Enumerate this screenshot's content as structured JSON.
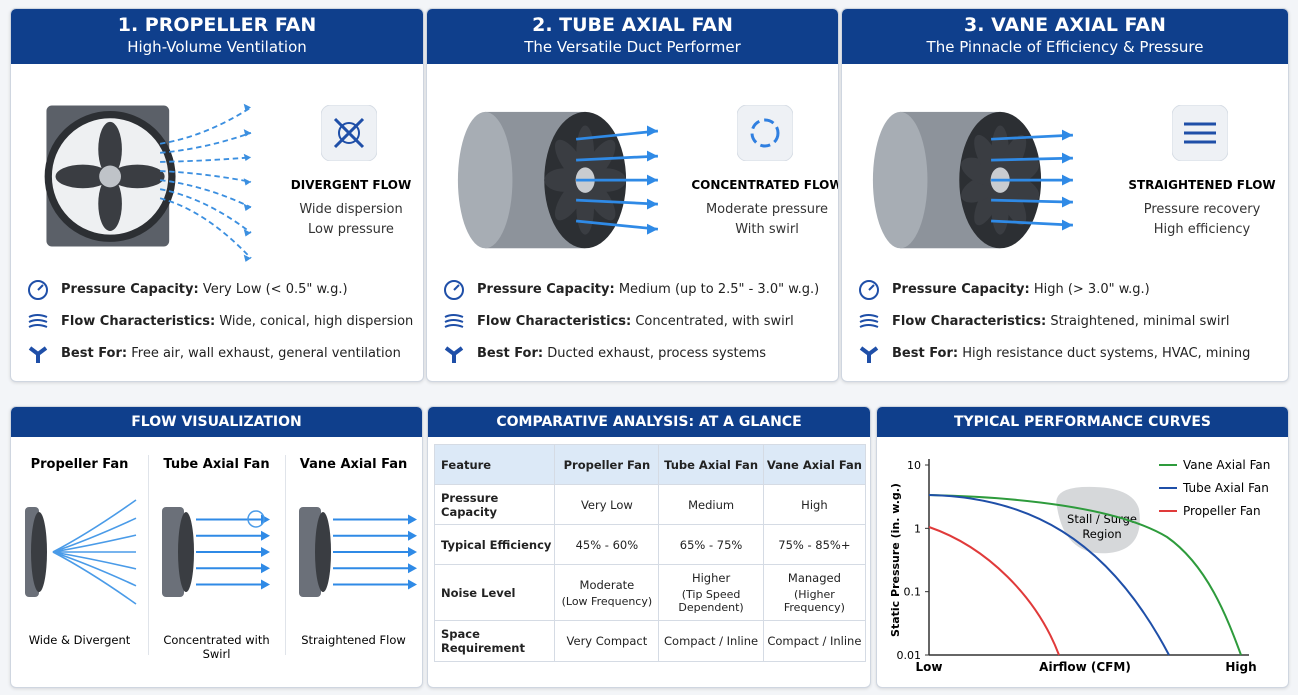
{
  "cards": [
    {
      "title": "1. PROPELLER FAN",
      "subtitle": "High-Volume Ventilation",
      "flow_label": "DIVERGENT FLOW",
      "flow_lines": [
        "Wide dispersion",
        "Low pressure"
      ],
      "specs": [
        {
          "label": "Pressure Capacity:",
          "text": "Very Low (< 0.5\" w.g.)"
        },
        {
          "label": "Flow Characteristics:",
          "text": "Wide, conical, high dispersion"
        },
        {
          "label": "Best For:",
          "text": "Free air, wall exhaust, general ventilation"
        }
      ]
    },
    {
      "title": "2. TUBE AXIAL FAN",
      "subtitle": "The Versatile Duct Performer",
      "flow_label": "CONCENTRATED FLOW",
      "flow_lines": [
        "Moderate pressure",
        "With swirl"
      ],
      "specs": [
        {
          "label": "Pressure Capacity:",
          "text": "Medium (up to 2.5\" - 3.0\" w.g.)"
        },
        {
          "label": "Flow Characteristics:",
          "text": "Concentrated, with swirl"
        },
        {
          "label": "Best For:",
          "text": "Ducted exhaust, process systems"
        }
      ]
    },
    {
      "title": "3. VANE AXIAL FAN",
      "subtitle": "The Pinnacle of Efficiency & Pressure",
      "flow_label": "STRAIGHTENED FLOW",
      "flow_lines": [
        "Pressure recovery",
        "High efficiency"
      ],
      "specs": [
        {
          "label": "Pressure Capacity:",
          "text": "High (> 3.0\" w.g.)"
        },
        {
          "label": "Flow Characteristics:",
          "text": "Straightened, minimal swirl"
        },
        {
          "label": "Best For:",
          "text": "High resistance duct systems, HVAC, mining"
        }
      ]
    }
  ],
  "flow_visualization": {
    "title": "FLOW VISUALIZATION",
    "panels": [
      {
        "name": "Propeller Fan",
        "caption": "Wide & Divergent"
      },
      {
        "name": "Tube Axial Fan",
        "caption": "Concentrated with Swirl"
      },
      {
        "name": "Vane Axial Fan",
        "caption": "Straightened Flow"
      }
    ]
  },
  "comparison": {
    "title": "COMPARATIVE ANALYSIS: AT A GLANCE",
    "header": [
      "Feature",
      "Propeller Fan",
      "Tube Axial Fan",
      "Vane Axial Fan"
    ],
    "rows": [
      [
        "Pressure Capacity",
        "Very Low",
        "Medium",
        "High"
      ],
      [
        "Typical Efficiency",
        "45% - 60%",
        "65% - 75%",
        "75% - 85%+"
      ],
      [
        "Noise Level",
        [
          "Moderate",
          "(Low Frequency)"
        ],
        [
          "Higher",
          "(Tip Speed Dependent)"
        ],
        [
          "Managed",
          "(Higher Frequency)"
        ]
      ],
      [
        "Space Requirement",
        "Very Compact",
        "Compact / Inline",
        "Compact / Inline"
      ]
    ]
  },
  "performance": {
    "title": "TYPICAL PERFORMANCE CURVES",
    "y_label": "Static Pressure (in. w.g.)",
    "x_label": "Airflow (CFM)",
    "x_low": "Low",
    "x_high": "High",
    "log_scale": true,
    "ylim": [
      0.01,
      10
    ],
    "yticks": [
      10,
      1,
      0.1,
      0.01
    ],
    "legend": [
      {
        "name": "Vane Axial Fan",
        "color": "#2e9b3c"
      },
      {
        "name": "Tube Axial Fan",
        "color": "#1f4fa8"
      },
      {
        "name": "Propeller Fan",
        "color": "#e03a3a"
      }
    ],
    "annotation": [
      "Stall / Surge",
      "Region"
    ]
  }
}
